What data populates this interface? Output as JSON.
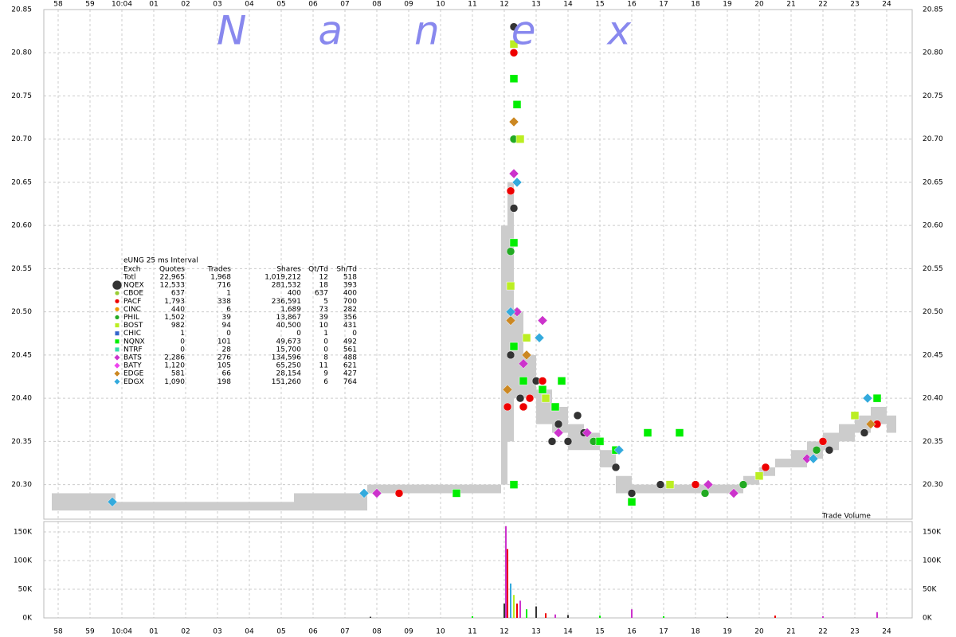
{
  "chart_data": {
    "type": "scatter",
    "watermark": "Nanex",
    "volume_label": "Trade Volume",
    "xlim": [
      -2.45,
      24.8
    ],
    "xticks": [
      {
        "value": -2,
        "label": "58"
      },
      {
        "value": -1,
        "label": "59"
      },
      {
        "value": 0,
        "label": "10:04"
      },
      {
        "value": 1,
        "label": "01"
      },
      {
        "value": 2,
        "label": "02"
      },
      {
        "value": 3,
        "label": "03"
      },
      {
        "value": 4,
        "label": "04"
      },
      {
        "value": 5,
        "label": "05"
      },
      {
        "value": 6,
        "label": "06"
      },
      {
        "value": 7,
        "label": "07"
      },
      {
        "value": 8,
        "label": "08"
      },
      {
        "value": 9,
        "label": "09"
      },
      10,
      11,
      12,
      13,
      14,
      15,
      16,
      17,
      18,
      19,
      20,
      21,
      22,
      23,
      24
    ],
    "ylim": [
      20.26,
      20.85
    ],
    "yticks": [
      {
        "value": 20.3,
        "label": "20.30"
      },
      20.35,
      {
        "value": 20.4,
        "label": "20.40"
      },
      20.45,
      {
        "value": 20.5,
        "label": "20.50"
      },
      20.55,
      {
        "value": 20.6,
        "label": "20.60"
      },
      20.65,
      {
        "value": 20.7,
        "label": "20.70"
      },
      20.75,
      {
        "value": 20.8,
        "label": "20.80"
      },
      20.85
    ],
    "grid": true,
    "band": {
      "color": "#cccccc",
      "x": [
        -2.2,
        -0.2,
        5.4,
        7.7,
        8.7,
        10.7,
        11.6,
        11.9,
        12.1,
        12.3,
        12.6,
        13.0,
        13.5,
        14.0,
        14.5,
        15.0,
        15.5,
        16.0,
        17.0,
        18.0,
        19.0,
        19.5,
        20.0,
        20.5,
        21.0,
        21.5,
        22.0,
        22.5,
        23.0,
        23.5,
        24.0
      ],
      "low": [
        20.27,
        20.27,
        20.27,
        20.29,
        20.29,
        20.29,
        20.29,
        20.3,
        20.35,
        20.4,
        20.4,
        20.37,
        20.36,
        20.34,
        20.34,
        20.32,
        20.29,
        20.29,
        20.29,
        20.29,
        20.29,
        20.3,
        20.31,
        20.32,
        20.32,
        20.33,
        20.34,
        20.35,
        20.36,
        20.37,
        20.36
      ],
      "high": [
        20.29,
        20.28,
        20.29,
        20.3,
        20.3,
        20.3,
        20.3,
        20.6,
        20.65,
        20.5,
        20.45,
        20.41,
        20.39,
        20.37,
        20.36,
        20.34,
        20.31,
        20.3,
        20.3,
        20.3,
        20.3,
        20.31,
        20.32,
        20.33,
        20.34,
        20.35,
        20.36,
        20.37,
        20.38,
        20.39,
        20.38
      ]
    },
    "legend": {
      "title": "eUNG 25 ms Interval",
      "columns": [
        "Exch",
        "Quotes",
        "Trades",
        "Shares",
        "Qt/Td",
        "Sh/Td"
      ],
      "total": [
        "Totl",
        "22,965",
        "1,968",
        "1,019,212",
        "12",
        "518"
      ]
    },
    "series": [
      {
        "name": "NQEX",
        "color": "#333333",
        "marker": "circle",
        "stats": [
          "12,533",
          "716",
          "281,532",
          "18",
          "393"
        ],
        "x": [
          12.3,
          12.3,
          12.2,
          12.5,
          13.0,
          13.7,
          14.0,
          14.3,
          14.5,
          15.5,
          16.0,
          23.3,
          22.2,
          16.9,
          13.5
        ],
        "values": [
          20.83,
          20.62,
          20.45,
          20.4,
          20.42,
          20.37,
          20.35,
          20.38,
          20.36,
          20.32,
          20.29,
          20.36,
          20.34,
          20.3,
          20.35
        ]
      },
      {
        "name": "CBOE",
        "color": "#99cc33",
        "marker": "circle",
        "stats": [
          "637",
          "1",
          "400",
          "637",
          "400"
        ],
        "x": [],
        "values": []
      },
      {
        "name": "PACF",
        "color": "#ee0000",
        "marker": "circle",
        "stats": [
          "1,793",
          "338",
          "236,591",
          "5",
          "700"
        ],
        "x": [
          12.3,
          12.2,
          12.1,
          12.6,
          13.2,
          12.8,
          18.0,
          20.2,
          23.7,
          8.7,
          22.0
        ],
        "values": [
          20.8,
          20.64,
          20.39,
          20.39,
          20.42,
          20.4,
          20.3,
          20.32,
          20.37,
          20.29,
          20.35
        ]
      },
      {
        "name": "CINC",
        "color": "#ee9900",
        "marker": "circle",
        "stats": [
          "440",
          "6",
          "1,689",
          "73",
          "282"
        ],
        "x": [],
        "values": []
      },
      {
        "name": "PHIL",
        "color": "#22aa22",
        "marker": "circle",
        "stats": [
          "1,502",
          "39",
          "13,867",
          "39",
          "356"
        ],
        "x": [
          12.3,
          12.2,
          12.4,
          14.8,
          18.3,
          21.8,
          19.5
        ],
        "values": [
          20.7,
          20.57,
          20.5,
          20.35,
          20.29,
          20.34,
          20.3
        ]
      },
      {
        "name": "BOST",
        "color": "#bbee22",
        "marker": "square",
        "stats": [
          "982",
          "94",
          "40,500",
          "10",
          "431"
        ],
        "x": [
          12.3,
          12.5,
          12.7,
          13.3,
          17.2,
          20.0,
          23.0,
          12.2
        ],
        "values": [
          20.81,
          20.7,
          20.47,
          20.4,
          20.3,
          20.31,
          20.38,
          20.53
        ]
      },
      {
        "name": "CHIC",
        "color": "#3366cc",
        "marker": "square",
        "stats": [
          "1",
          "0",
          "0",
          "1",
          "0"
        ],
        "x": [],
        "values": []
      },
      {
        "name": "NQNX",
        "color": "#00ee00",
        "marker": "square",
        "stats": [
          "0",
          "101",
          "49,673",
          "0",
          "492"
        ],
        "x": [
          12.3,
          12.4,
          12.3,
          12.3,
          12.6,
          13.2,
          13.6,
          15.0,
          16.0,
          16.5,
          12.3,
          10.5,
          23.7,
          15.5,
          17.5,
          13.8
        ],
        "values": [
          20.77,
          20.74,
          20.58,
          20.46,
          20.42,
          20.41,
          20.39,
          20.35,
          20.28,
          20.36,
          20.3,
          20.29,
          20.4,
          20.34,
          20.36,
          20.42
        ]
      },
      {
        "name": "NTRF",
        "color": "#33ddaa",
        "marker": "square",
        "stats": [
          "0",
          "28",
          "15,700",
          "0",
          "561"
        ],
        "x": [],
        "values": []
      },
      {
        "name": "BATS",
        "color": "#cc33cc",
        "marker": "diamond",
        "stats": [
          "2,286",
          "276",
          "134,596",
          "8",
          "488"
        ],
        "x": [
          12.3,
          12.4,
          13.2,
          12.6,
          14.6,
          18.4,
          21.5,
          13.7,
          19.2,
          8.0
        ],
        "values": [
          20.66,
          20.5,
          20.49,
          20.44,
          20.36,
          20.3,
          20.33,
          20.36,
          20.29,
          20.29
        ]
      },
      {
        "name": "BATY",
        "color": "#ee44ee",
        "marker": "diamond",
        "stats": [
          "1,120",
          "105",
          "65,250",
          "11",
          "621"
        ],
        "x": [],
        "values": []
      },
      {
        "name": "EDGE",
        "color": "#cc8822",
        "marker": "diamond",
        "stats": [
          "581",
          "66",
          "28,154",
          "9",
          "427"
        ],
        "x": [
          12.2,
          12.3,
          12.7,
          23.5,
          12.1
        ],
        "values": [
          20.49,
          20.72,
          20.45,
          20.37,
          20.41
        ]
      },
      {
        "name": "EDGX",
        "color": "#33aadd",
        "marker": "diamond",
        "stats": [
          "1,090",
          "198",
          "151,260",
          "6",
          "764"
        ],
        "x": [
          -0.3,
          12.4,
          12.2,
          13.1,
          15.6,
          21.7,
          23.4,
          7.6
        ],
        "values": [
          20.28,
          20.65,
          20.5,
          20.47,
          20.34,
          20.33,
          20.4,
          20.29
        ]
      }
    ],
    "volume": {
      "ylim": [
        0,
        168000
      ],
      "yticks": [
        {
          "value": 0,
          "label": "0K"
        },
        {
          "value": 50000,
          "label": "50K"
        },
        {
          "value": 100000,
          "label": "100K"
        },
        {
          "value": 150000,
          "label": "150K"
        }
      ],
      "x": [
        7.8,
        11.0,
        12.0,
        12.05,
        12.1,
        12.2,
        12.3,
        12.4,
        12.5,
        12.7,
        13.0,
        13.3,
        13.6,
        14.0,
        15.0,
        16.0,
        17.0,
        19.0,
        20.5,
        22.0,
        23.7
      ],
      "values": [
        2000,
        3000,
        25000,
        160000,
        120000,
        60000,
        40000,
        25000,
        30000,
        15000,
        20000,
        8000,
        6000,
        5000,
        4000,
        15000,
        3000,
        2000,
        4000,
        3000,
        10000
      ],
      "colors": [
        "#333333",
        "#00ee00",
        "#333333",
        "#cc33cc",
        "#ee0000",
        "#33aadd",
        "#bbee22",
        "#ee0000",
        "#cc33cc",
        "#00ee00",
        "#333333",
        "#ee0000",
        "#cc33cc",
        "#333333",
        "#00ee00",
        "#cc33cc",
        "#00ee00",
        "#333333",
        "#ee0000",
        "#cc33cc",
        "#cc33cc"
      ]
    }
  }
}
